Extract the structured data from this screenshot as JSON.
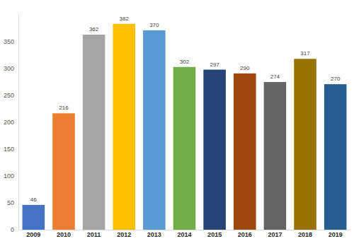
{
  "chart_data": {
    "type": "bar",
    "categories": [
      "2009",
      "2010",
      "2011",
      "2012",
      "2013",
      "2014",
      "2015",
      "2016",
      "2017",
      "2018",
      "2019"
    ],
    "values": [
      46,
      216,
      362,
      382,
      370,
      302,
      297,
      290,
      274,
      317,
      270
    ],
    "colors": [
      "#4472c4",
      "#ed7d31",
      "#a5a5a5",
      "#ffc000",
      "#5b9bd5",
      "#70ad47",
      "#264478",
      "#9e480e",
      "#636363",
      "#997300",
      "#255e91"
    ],
    "ylim": [
      0,
      400
    ],
    "yticks": [
      0,
      50,
      100,
      150,
      200,
      250,
      300,
      350
    ],
    "grid": false,
    "data_labels": true
  }
}
